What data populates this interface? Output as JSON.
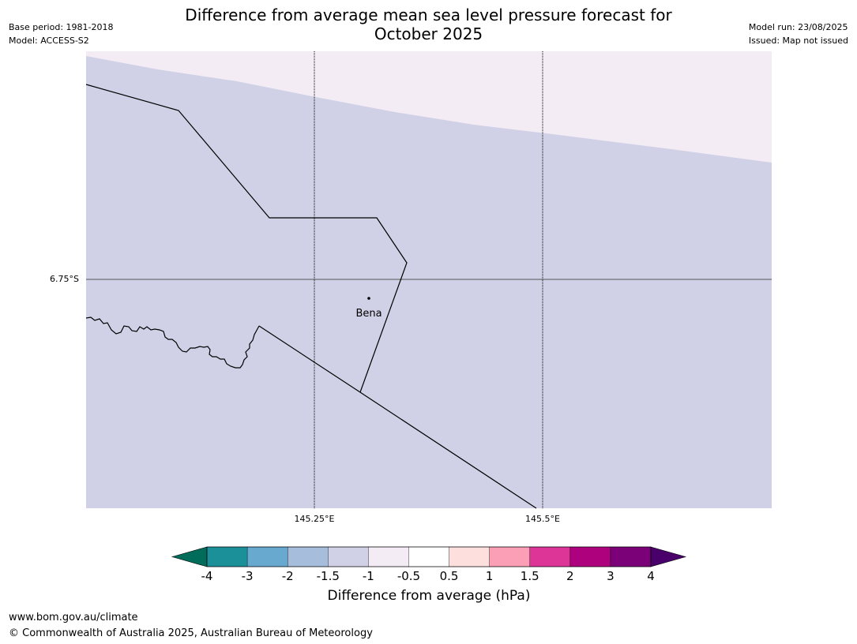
{
  "header": {
    "title_line1": "Difference from average mean sea level pressure forecast for",
    "title_line2": "October 2025",
    "base_period": "Base period: 1981-2018",
    "model": "Model: ACCESS-S2",
    "model_run": "Model run: 23/08/2025",
    "issued": "Issued: Map not issued"
  },
  "map": {
    "latitude_label": "6.75°S",
    "longitude_labels": [
      "145.25°E",
      "145.5°E"
    ],
    "place": {
      "name": "Bena"
    },
    "colors": {
      "main_fill": "#d0d1e6",
      "upper_fill": "#f4ecf5",
      "boundary": "#000000",
      "gridline_lat": "#555555",
      "gridline_lon": "#000000"
    }
  },
  "colorbar": {
    "title": "Difference from average (hPa)",
    "ticks": [
      "-4",
      "-3",
      "-2",
      "-1.5",
      "-1",
      "-0.5",
      "0.5",
      "1",
      "1.5",
      "2",
      "3",
      "4"
    ],
    "under_color": "#016c59",
    "over_color": "#49006a",
    "colors": [
      "#1c9099",
      "#67a9cf",
      "#a6bddb",
      "#d0d1e6",
      "#f4ecf5",
      "#ffffff",
      "#fde0dd",
      "#fa9fb5",
      "#dd3497",
      "#ae017e",
      "#7a0177"
    ]
  },
  "footer": {
    "url": "www.bom.gov.au/climate",
    "copyright": "© Commonwealth of Australia 2025, Australian Bureau of Meteorology"
  }
}
